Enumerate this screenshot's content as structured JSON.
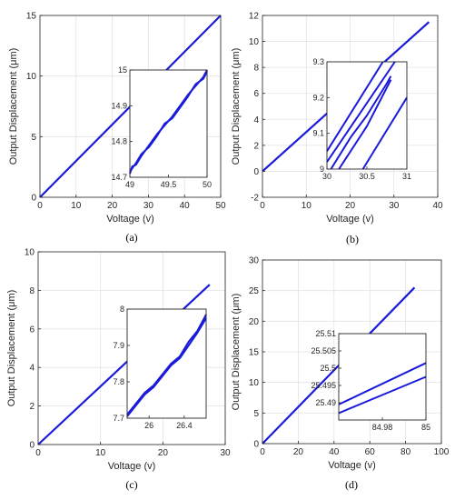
{
  "colors": {
    "line": "#1a1adb",
    "grid": "#e3e3e3",
    "axis": "#262626"
  },
  "chart_data": [
    {
      "type": "line",
      "panel_label": "(a)",
      "xlabel": "Voltage (v)",
      "ylabel": "Output Displacement (μm)",
      "xlim": [
        0,
        50
      ],
      "ylim": [
        0,
        15
      ],
      "xticks": [
        0,
        10,
        20,
        30,
        40,
        50
      ],
      "yticks": [
        0,
        5,
        10,
        15
      ],
      "grid": true,
      "series": [
        {
          "x": [
            0,
            50
          ],
          "y": [
            0,
            15
          ]
        }
      ],
      "inset": {
        "xlim": [
          49,
          50
        ],
        "ylim": [
          14.7,
          15
        ],
        "xticks": [
          "49",
          "49.5",
          "50"
        ],
        "xtick_values": [
          49,
          49.5,
          50
        ],
        "yticks": [
          "14.7",
          "14.8",
          "14.9",
          "15"
        ],
        "ytick_values": [
          14.7,
          14.8,
          14.9,
          15
        ],
        "series": [
          {
            "x": [
              49.0,
              49.03,
              49.08,
              49.15,
              49.25,
              49.35,
              49.45,
              49.55,
              49.65,
              49.75,
              49.85,
              49.95,
              50.0
            ],
            "y": [
              14.71,
              14.73,
              14.735,
              14.76,
              14.79,
              14.82,
              14.845,
              14.87,
              14.9,
              14.93,
              14.955,
              14.98,
              15.0
            ]
          },
          {
            "x": [
              49.0,
              49.03,
              49.08,
              49.15,
              49.25,
              49.35,
              49.45,
              49.55,
              49.65,
              49.75,
              49.85,
              49.95,
              50.0
            ],
            "y": [
              14.715,
              14.725,
              14.74,
              14.765,
              14.785,
              14.815,
              14.85,
              14.865,
              14.895,
              14.925,
              14.96,
              14.975,
              14.995
            ]
          }
        ]
      }
    },
    {
      "type": "line",
      "panel_label": "(b)",
      "xlabel": "Voltage (v)",
      "ylabel": "Output Displacement (μm)",
      "xlim": [
        0,
        40
      ],
      "ylim": [
        -2,
        12
      ],
      "xticks": [
        0,
        10,
        20,
        30,
        40
      ],
      "yticks": [
        -2,
        0,
        2,
        4,
        6,
        8,
        10,
        12
      ],
      "grid": true,
      "series": [
        {
          "x": [
            0,
            38
          ],
          "y": [
            0,
            11.5
          ]
        }
      ],
      "inset": {
        "xlim": [
          30,
          31
        ],
        "ylim": [
          9,
          9.3
        ],
        "xticks": [
          "30",
          "30.5",
          "31"
        ],
        "xtick_values": [
          30,
          30.5,
          31
        ],
        "yticks": [
          "9",
          "9.1",
          "9.2",
          "9.3"
        ],
        "ytick_values": [
          9,
          9.1,
          9.2,
          9.3
        ],
        "series": [
          {
            "x": [
              30.0,
              30.7
            ],
            "y": [
              9.05,
              9.3
            ]
          },
          {
            "x": [
              30.0,
              30.85
            ],
            "y": [
              9.02,
              9.3
            ]
          },
          {
            "x": [
              30.05,
              30.3,
              30.5,
              30.75,
              30.8
            ],
            "y": [
              9.0,
              9.09,
              9.15,
              9.24,
              9.26
            ]
          },
          {
            "x": [
              30.15,
              30.5,
              30.8
            ],
            "y": [
              9.0,
              9.12,
              9.25
            ]
          },
          {
            "x": [
              30.45,
              31.0
            ],
            "y": [
              9.0,
              9.2
            ]
          }
        ]
      }
    },
    {
      "type": "line",
      "panel_label": "(c)",
      "xlabel": "Voltage (v)",
      "ylabel": "Output Displacement (μm)",
      "xlim": [
        0,
        30
      ],
      "ylim": [
        0,
        10
      ],
      "xticks": [
        0,
        10,
        20,
        30
      ],
      "yticks": [
        0,
        2,
        4,
        6,
        8,
        10
      ],
      "grid": true,
      "series": [
        {
          "x": [
            0,
            27.5
          ],
          "y": [
            0,
            8.3
          ]
        }
      ],
      "inset": {
        "xlim": [
          25.75,
          26.65
        ],
        "ylim": [
          7.7,
          8.0
        ],
        "xticks": [
          "26",
          "26.4"
        ],
        "xtick_values": [
          26,
          26.4
        ],
        "yticks": [
          "7.7",
          "7.8",
          "7.9",
          "8"
        ],
        "ytick_values": [
          7.7,
          7.8,
          7.9,
          8.0
        ],
        "series": [
          {
            "x": [
              25.75,
              25.8,
              25.85,
              25.95,
              26.05,
              26.15,
              26.25,
              26.35,
              26.45,
              26.55,
              26.65
            ],
            "y": [
              7.71,
              7.725,
              7.74,
              7.77,
              7.79,
              7.82,
              7.85,
              7.87,
              7.91,
              7.94,
              7.985
            ]
          },
          {
            "x": [
              25.75,
              25.8,
              25.85,
              25.95,
              26.05,
              26.15,
              26.25,
              26.35,
              26.45,
              26.55,
              26.65
            ],
            "y": [
              7.705,
              7.72,
              7.735,
              7.765,
              7.785,
              7.815,
              7.845,
              7.865,
              7.9,
              7.935,
              7.975
            ]
          }
        ]
      }
    },
    {
      "type": "line",
      "panel_label": "(d)",
      "xlabel": "Voltage (v)",
      "ylabel": "Output Displacement (μm)",
      "xlim": [
        0,
        100
      ],
      "ylim": [
        0,
        30
      ],
      "xticks": [
        0,
        20,
        40,
        60,
        80,
        100
      ],
      "yticks": [
        0,
        5,
        10,
        15,
        20,
        25,
        30
      ],
      "grid": true,
      "series": [
        {
          "x": [
            0,
            85
          ],
          "y": [
            0,
            25.5
          ]
        }
      ],
      "inset": {
        "xlim": [
          84.96,
          85.0
        ],
        "ylim": [
          25.485,
          25.51
        ],
        "xticks": [
          "84.98",
          "85"
        ],
        "xtick_values": [
          84.98,
          85.0
        ],
        "yticks": [
          "25.49",
          "25.495",
          "25.5",
          "25.505",
          "25.51"
        ],
        "ytick_values": [
          25.49,
          25.495,
          25.5,
          25.505,
          25.51
        ],
        "series": [
          {
            "x": [
              84.96,
              85.0
            ],
            "y": [
              25.4895,
              25.5015
            ]
          },
          {
            "x": [
              84.96,
              85.0
            ],
            "y": [
              25.487,
              25.4975
            ]
          }
        ]
      }
    }
  ]
}
